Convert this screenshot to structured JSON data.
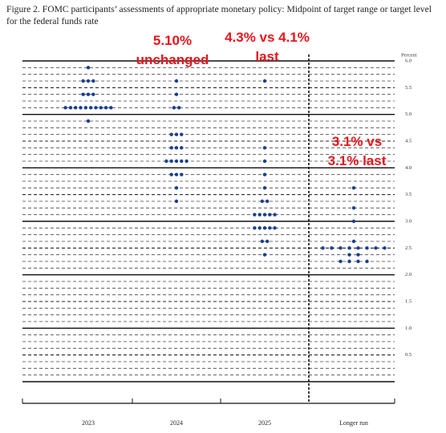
{
  "chart_data": {
    "type": "dot",
    "title": "Figure 2.  FOMC participants’ assessments of appropriate monetary policy: Midpoint of target range or target level for the federal funds rate",
    "y_label": "Percent",
    "categories": [
      "2023",
      "2024",
      "2025",
      "Longer run"
    ],
    "dots": [
      [
        {
          "value": 5.875,
          "count": 1
        },
        {
          "value": 5.625,
          "count": 3
        },
        {
          "value": 5.375,
          "count": 3
        },
        {
          "value": 5.125,
          "count": 10
        },
        {
          "value": 4.875,
          "count": 1
        }
      ],
      [
        {
          "value": 5.625,
          "count": 1
        },
        {
          "value": 5.375,
          "count": 1
        },
        {
          "value": 5.125,
          "count": 2
        },
        {
          "value": 4.625,
          "count": 3
        },
        {
          "value": 4.375,
          "count": 3
        },
        {
          "value": 4.125,
          "count": 5
        },
        {
          "value": 3.875,
          "count": 3
        },
        {
          "value": 3.625,
          "count": 1
        },
        {
          "value": 3.375,
          "count": 1
        }
      ],
      [
        {
          "value": 5.625,
          "count": 1
        },
        {
          "value": 4.375,
          "count": 1
        },
        {
          "value": 4.125,
          "count": 1
        },
        {
          "value": 3.875,
          "count": 1
        },
        {
          "value": 3.625,
          "count": 1
        },
        {
          "value": 3.375,
          "count": 2
        },
        {
          "value": 3.125,
          "count": 5
        },
        {
          "value": 2.875,
          "count": 5
        },
        {
          "value": 2.625,
          "count": 2
        },
        {
          "value": 2.375,
          "count": 1
        }
      ],
      [
        {
          "value": 3.625,
          "count": 1
        },
        {
          "value": 3.25,
          "count": 1
        },
        {
          "value": 3.0,
          "count": 1
        },
        {
          "value": 2.625,
          "count": 1
        },
        {
          "value": 2.5,
          "count": 8
        },
        {
          "value": 2.375,
          "count": 2
        },
        {
          "value": 2.25,
          "count": 4
        }
      ]
    ],
    "color": "#1a3f8f",
    "ylim": [
      0,
      6
    ],
    "yticks": [
      {
        "value": 0.5,
        "label": "0.5"
      },
      {
        "value": 1,
        "label": "1.0"
      },
      {
        "value": 1.5,
        "label": "1.5"
      },
      {
        "value": 2,
        "label": "2.0"
      },
      {
        "value": 2.5,
        "label": "2.5"
      },
      {
        "value": 3,
        "label": "3.0"
      },
      {
        "value": 3.5,
        "label": "3.5"
      },
      {
        "value": 4,
        "label": "4.0"
      },
      {
        "value": 4.5,
        "label": "4.5"
      },
      {
        "value": 5,
        "label": "5.0"
      },
      {
        "value": 5.5,
        "label": "5.5"
      },
      {
        "value": 6,
        "label": "6.0"
      }
    ],
    "annotations": [
      [
        "5.10%",
        "unchanged"
      ],
      [
        "4.3% vs 4.1%",
        "last"
      ],
      [
        "3.1% vs",
        "3.1% last"
      ]
    ]
  }
}
